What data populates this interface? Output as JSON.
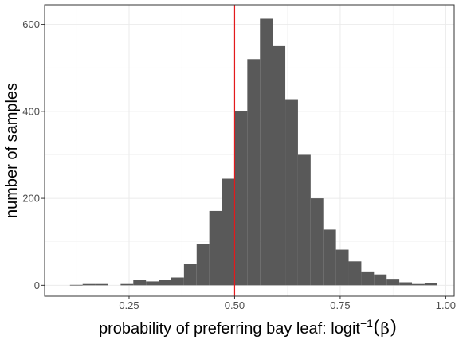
{
  "chart_data": {
    "type": "histogram",
    "xlabel": "probability of preferring bay leaf: logit",
    "xlabel_superscript": "−1",
    "xlabel_paren_content": "β",
    "ylabel": "number of samples",
    "xlim": [
      0.05,
      1.02
    ],
    "ylim": [
      -25,
      645
    ],
    "xticks": [
      0.25,
      0.5,
      0.75,
      1.0
    ],
    "xtick_labels": [
      "0.25",
      "0.50",
      "0.75",
      "1.00"
    ],
    "yticks": [
      0,
      200,
      400,
      600
    ],
    "ytick_labels": [
      "0",
      "200",
      "400",
      "600"
    ],
    "grid": true,
    "bin_width": 0.03,
    "bin_start": 0.11,
    "values": [
      1,
      3,
      3,
      0,
      3,
      12,
      9,
      13,
      18,
      49,
      94,
      171,
      245,
      400,
      520,
      613,
      550,
      428,
      300,
      200,
      128,
      82,
      55,
      32,
      25,
      15,
      7,
      3,
      6
    ],
    "vline": {
      "x": 0.5,
      "color": "#e31a1c"
    },
    "bar_color": "#595959"
  }
}
